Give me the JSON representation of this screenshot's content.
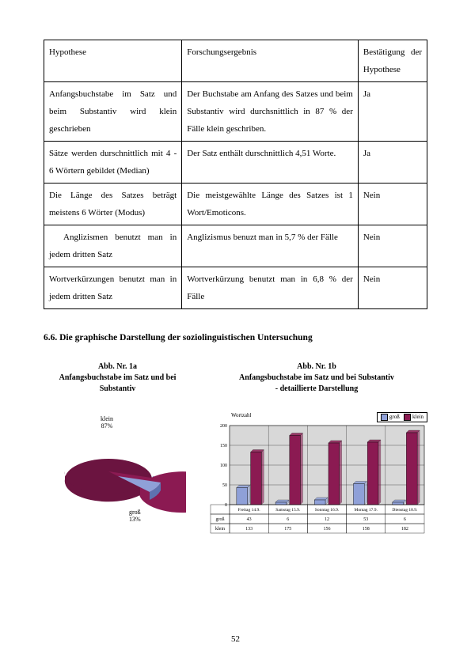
{
  "table": {
    "headers": [
      "Hypothese",
      "Forschungsergebnis",
      "Bestätigung der Hypothese"
    ],
    "rows": [
      {
        "h": "Anfangsbuchstabe im Satz und beim Substantiv wird klein geschrieben",
        "f": "Der Buchstabe am Anfang des Satzes und beim Substantiv wird durchsnittlich in 87 % der Fälle klein geschriben.",
        "b": "Ja"
      },
      {
        "h": "Sätze werden durschnittlich mit 4 - 6 Wörtern gebildet (Median)",
        "f": "Der Satz enthält durschnittlich 4,51 Worte.",
        "b": "Ja"
      },
      {
        "h": "Die Länge des Satzes beträgt meistens 6 Wörter (Modus)",
        "f": "Die meistgewählte Länge des Satzes ist 1 Wort/Emoticons.",
        "b": "Nein"
      },
      {
        "h": "Anglizismen benutzt man in jedem dritten Satz",
        "f": "Anglizismus benuzt man in  5,7 % der Fälle",
        "b": "Nein",
        "indent": true
      },
      {
        "h": "Wortverkürzungen benutzt man in jedem dritten Satz",
        "f": "Wortverkürzung benutzt man in 6,8 % der Fälle",
        "b": "Nein"
      }
    ]
  },
  "section_heading": "6.6. Die graphische Darstellung der soziolinguistischen Untersuchung",
  "pie": {
    "title_line1": "Abb. Nr. 1a",
    "title_line2": "Anfangsbuchstabe im Satz und bei Substantiv",
    "klein_pct": 87,
    "gross_pct": 13,
    "klein_label": "klein\n87%",
    "gross_label": "groß\n13%",
    "color_klein": "#8b1a52",
    "color_klein_light": "#a8356a",
    "color_gross": "#8fa0d8",
    "color_gross_light": "#adb9e2"
  },
  "bar": {
    "title_line1": "Abb. Nr. 1b",
    "title_line2": "Anfangsbuchstabe im Satz und bei Substantiv",
    "title_line3": "- detaillierte Darstellung",
    "axis_label": "Wortzahl",
    "legend": [
      {
        "label": "groß",
        "color": "#8fa0d8"
      },
      {
        "label": "klein",
        "color": "#8b1a52"
      }
    ],
    "ymax": 200,
    "ystep": 50,
    "categories": [
      "Freitag 14.9.",
      "Samstag 15.9.",
      "Sonntag 16.9.",
      "Montag 17.9.",
      "Dienstag 18.9."
    ],
    "series": {
      "gross": [
        43,
        6,
        12,
        53,
        6
      ],
      "klein": [
        133,
        175,
        156,
        158,
        182
      ]
    },
    "row_labels": [
      "groß",
      "klein"
    ],
    "plot_bg": "#d8d8d8",
    "bar_border": "#000000"
  },
  "page_number": "52"
}
